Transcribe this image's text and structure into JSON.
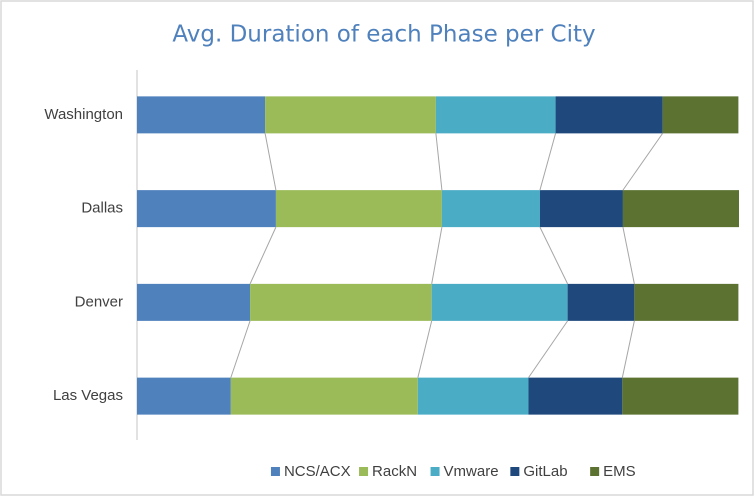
{
  "chart_data": {
    "type": "stacked-bar-horizontal",
    "title": "Avg. Duration of each Phase per City",
    "categories": [
      "Washington",
      "Dallas",
      "Denver",
      "Las Vegas"
    ],
    "series": [
      {
        "name": "NCS/ACX",
        "color": "#4f81bd",
        "values": [
          21.3,
          23.1,
          18.8,
          15.6
        ]
      },
      {
        "name": "RackN",
        "color": "#9bbb59",
        "values": [
          28.4,
          27.6,
          30.2,
          31.1
        ]
      },
      {
        "name": "Vmware",
        "color": "#4bacc6",
        "values": [
          19.9,
          16.3,
          22.6,
          18.4
        ]
      },
      {
        "name": "GitLab",
        "color": "#1f497d",
        "values": [
          17.8,
          13.8,
          11.1,
          15.6
        ]
      },
      {
        "name": "EMS",
        "color": "#5b7230",
        "values": [
          12.6,
          19.3,
          17.3,
          19.3
        ]
      }
    ],
    "legend": "bottom"
  }
}
